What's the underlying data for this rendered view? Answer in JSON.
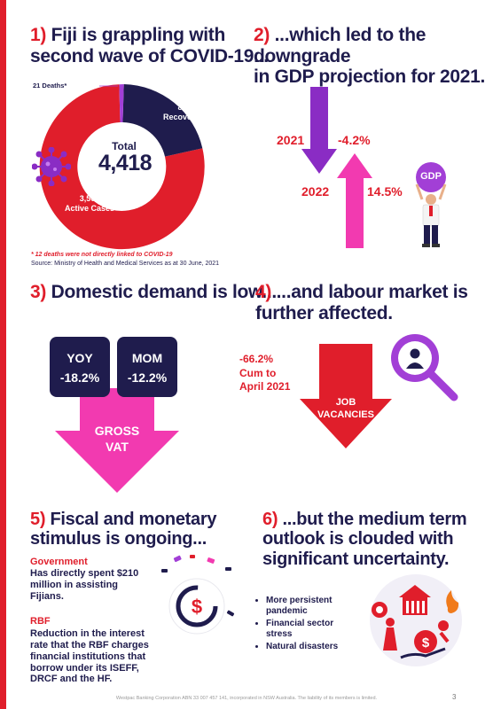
{
  "s1": {
    "num": "1)",
    "title_l1": "Fiji is grappling with",
    "title_l2": "second wave of COVID-19...",
    "deaths_label": "21 Deaths*",
    "recoveries_value": "882",
    "recoveries_label": "Recoveries",
    "total_label": "Total",
    "total_value": "4,418",
    "active_value": "3,503",
    "active_label": "Active Cases",
    "footnote": "* 12 deaths were not directly linked to COVID-19",
    "source": "Source: Ministry of Health and Medical Services as at 30 June, 2021",
    "colors": {
      "active": "#e01e2b",
      "recoveries": "#1f1c4d",
      "deaths": "#a23fd6"
    }
  },
  "s2": {
    "num": "2)",
    "title_l1": "...which led to the downgrade",
    "title_l2": "in GDP projection for 2021.",
    "y2021": "2021",
    "v2021": "-4.2%",
    "y2022": "2022",
    "v2022": "14.5%",
    "gdp_sign": "GDP"
  },
  "s3": {
    "num": "3)",
    "title": "Domestic demand is low...",
    "yoy_label": "YOY",
    "yoy_value": "-18.2%",
    "mom_label": "MOM",
    "mom_value": "-12.2%",
    "arrow_l1": "GROSS",
    "arrow_l2": "VAT"
  },
  "s4": {
    "num": "4)",
    "title_l1": "...and labour market is",
    "title_l2": "further affected.",
    "value": "-66.2%",
    "cum_l1": "Cum to",
    "cum_l2": "April 2021",
    "arrow_l1": "JOB",
    "arrow_l2": "VACANCIES"
  },
  "s5": {
    "num": "5)",
    "title_l1": "Fiscal and monetary",
    "title_l2": "stimulus is ongoing...",
    "gov_head": "Government",
    "gov_l1": "Has directly spent $210",
    "gov_l2": "million in assisting",
    "gov_l3": "Fijians.",
    "rbf_head": "RBF",
    "rbf_l1": "Reduction in the interest",
    "rbf_l2": "rate that the RBF charges",
    "rbf_l3": "financial institutions that",
    "rbf_l4": "borrow under its ISEFF,",
    "rbf_l5": "DRCF and the HF."
  },
  "s6": {
    "num": "6)",
    "title_l1": "...but the medium term",
    "title_l2": "outlook is clouded with",
    "title_l3": "significant uncertainty.",
    "b1_l1": "More persistent",
    "b1_l2": "pandemic",
    "b2_l1": "Financial sector",
    "b2_l2": "stress",
    "b3": "Natural disasters"
  },
  "footer": "Westpac Banking Corporation ABN 33 007 457 141, incorporated in NSW Australia. The liability of its members is limited.",
  "page_num": "3"
}
